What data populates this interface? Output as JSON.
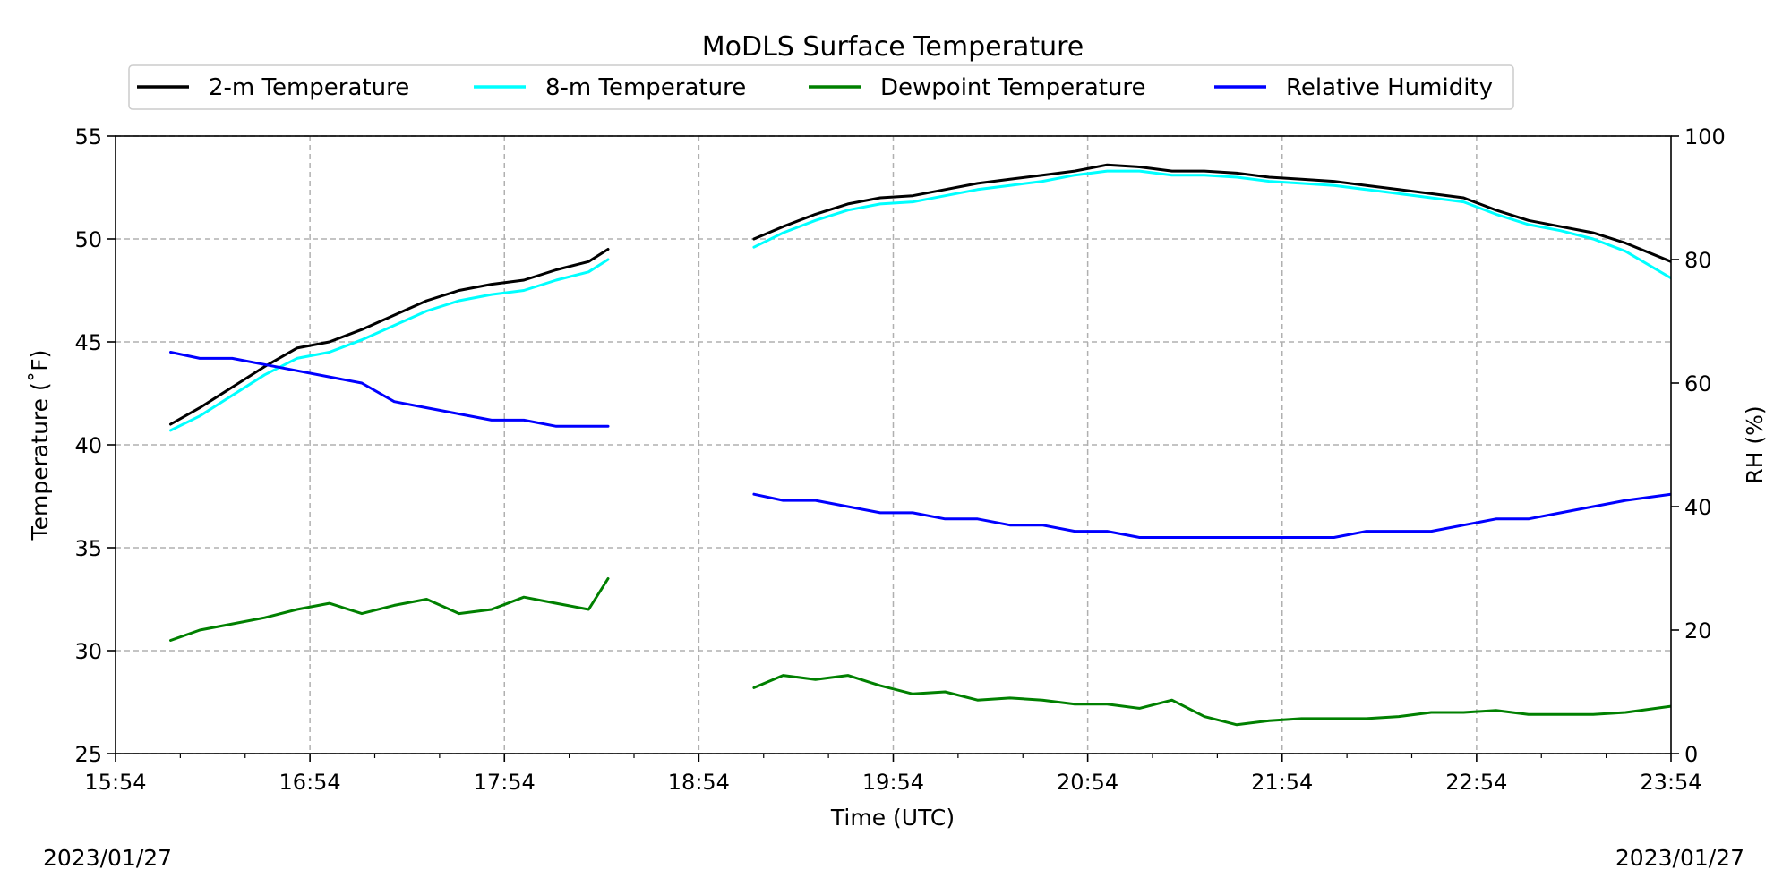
{
  "chart_data": {
    "type": "line",
    "title": "MoDLS Surface Temperature",
    "xlabel": "Time (UTC)",
    "ylabel": "Temperature (˚F)",
    "y2label": "RH (%)",
    "ylim": [
      25,
      55
    ],
    "y2lim": [
      0,
      100
    ],
    "xlim": [
      "15:54",
      "23:54"
    ],
    "x_ticks": [
      "15:54",
      "16:54",
      "17:54",
      "18:54",
      "19:54",
      "20:54",
      "21:54",
      "22:54",
      "23:54"
    ],
    "y_ticks": [
      25,
      30,
      35,
      40,
      45,
      50,
      55
    ],
    "y2_ticks": [
      0,
      20,
      40,
      60,
      80,
      100
    ],
    "grid": true,
    "legend_position": "top",
    "start_date": "2023/01/27",
    "end_date": "2023/01/27",
    "series": [
      {
        "name": "2-m Temperature",
        "color": "#000000",
        "axis": "left",
        "x": [
          "16:11",
          "16:20",
          "16:30",
          "16:40",
          "16:50",
          "17:00",
          "17:10",
          "17:20",
          "17:30",
          "17:40",
          "17:50",
          "18:00",
          "18:10",
          "18:20",
          "18:26",
          null,
          "19:11",
          "19:20",
          "19:30",
          "19:40",
          "19:50",
          "20:00",
          "20:10",
          "20:20",
          "20:30",
          "20:40",
          "20:50",
          "21:00",
          "21:10",
          "21:20",
          "21:30",
          "21:40",
          "21:50",
          "22:00",
          "22:10",
          "22:20",
          "22:30",
          "22:40",
          "22:50",
          "23:00",
          "23:10",
          "23:20",
          "23:30",
          "23:40",
          "23:54"
        ],
        "values": [
          41.0,
          41.8,
          42.8,
          43.8,
          44.7,
          45.0,
          45.6,
          46.3,
          47.0,
          47.5,
          47.8,
          48.0,
          48.5,
          48.9,
          49.5,
          null,
          50.0,
          50.6,
          51.2,
          51.7,
          52.0,
          52.1,
          52.4,
          52.7,
          52.9,
          53.1,
          53.3,
          53.6,
          53.5,
          53.3,
          53.3,
          53.2,
          53.0,
          52.9,
          52.8,
          52.6,
          52.4,
          52.2,
          52.0,
          51.4,
          50.9,
          50.6,
          50.3,
          49.8,
          48.9
        ]
      },
      {
        "name": "8-m Temperature",
        "color": "#00ffff",
        "axis": "left",
        "x": [
          "16:11",
          "16:20",
          "16:30",
          "16:40",
          "16:50",
          "17:00",
          "17:10",
          "17:20",
          "17:30",
          "17:40",
          "17:50",
          "18:00",
          "18:10",
          "18:20",
          "18:26",
          null,
          "19:11",
          "19:20",
          "19:30",
          "19:40",
          "19:50",
          "20:00",
          "20:10",
          "20:20",
          "20:30",
          "20:40",
          "20:50",
          "21:00",
          "21:10",
          "21:20",
          "21:30",
          "21:40",
          "21:50",
          "22:00",
          "22:10",
          "22:20",
          "22:30",
          "22:40",
          "22:50",
          "23:00",
          "23:10",
          "23:20",
          "23:30",
          "23:40",
          "23:54"
        ],
        "values": [
          40.7,
          41.4,
          42.4,
          43.4,
          44.2,
          44.5,
          45.1,
          45.8,
          46.5,
          47.0,
          47.3,
          47.5,
          48.0,
          48.4,
          49.0,
          null,
          49.6,
          50.3,
          50.9,
          51.4,
          51.7,
          51.8,
          52.1,
          52.4,
          52.6,
          52.8,
          53.1,
          53.3,
          53.3,
          53.1,
          53.1,
          53.0,
          52.8,
          52.7,
          52.6,
          52.4,
          52.2,
          52.0,
          51.8,
          51.2,
          50.7,
          50.4,
          50.0,
          49.4,
          48.1
        ]
      },
      {
        "name": "Dewpoint Temperature",
        "color": "#008000",
        "axis": "left",
        "x": [
          "16:11",
          "16:20",
          "16:30",
          "16:40",
          "16:50",
          "17:00",
          "17:10",
          "17:20",
          "17:30",
          "17:40",
          "17:50",
          "18:00",
          "18:10",
          "18:20",
          "18:26",
          null,
          "19:11",
          "19:20",
          "19:30",
          "19:40",
          "19:50",
          "20:00",
          "20:10",
          "20:20",
          "20:30",
          "20:40",
          "20:50",
          "21:00",
          "21:10",
          "21:20",
          "21:30",
          "21:40",
          "21:50",
          "22:00",
          "22:10",
          "22:20",
          "22:30",
          "22:40",
          "22:50",
          "23:00",
          "23:10",
          "23:20",
          "23:30",
          "23:40",
          "23:54"
        ],
        "values": [
          30.5,
          31.0,
          31.3,
          31.6,
          32.0,
          32.3,
          31.8,
          32.2,
          32.5,
          31.8,
          32.0,
          32.6,
          32.3,
          32.0,
          33.5,
          null,
          28.2,
          28.8,
          28.6,
          28.8,
          28.3,
          27.9,
          28.0,
          27.6,
          27.7,
          27.6,
          27.4,
          27.4,
          27.2,
          27.6,
          26.8,
          26.4,
          26.6,
          26.7,
          26.7,
          26.7,
          26.8,
          27.0,
          27.0,
          27.1,
          26.9,
          26.9,
          26.9,
          27.0,
          27.3
        ]
      },
      {
        "name": "Relative Humidity",
        "color": "#0000ff",
        "axis": "right",
        "x": [
          "16:11",
          "16:20",
          "16:30",
          "16:40",
          "16:50",
          "17:00",
          "17:10",
          "17:20",
          "17:30",
          "17:40",
          "17:50",
          "18:00",
          "18:10",
          "18:20",
          "18:26",
          null,
          "19:11",
          "19:20",
          "19:30",
          "19:40",
          "19:50",
          "20:00",
          "20:10",
          "20:20",
          "20:30",
          "20:40",
          "20:50",
          "21:00",
          "21:10",
          "21:20",
          "21:30",
          "21:40",
          "21:50",
          "22:00",
          "22:10",
          "22:20",
          "22:30",
          "22:40",
          "22:50",
          "23:00",
          "23:10",
          "23:20",
          "23:30",
          "23:40",
          "23:54"
        ],
        "values": [
          65,
          64,
          64,
          63,
          62,
          61,
          60,
          57,
          56,
          55,
          54,
          54,
          53,
          53,
          53,
          null,
          42,
          41,
          41,
          40,
          39,
          39,
          38,
          38,
          37,
          37,
          36,
          36,
          35,
          35,
          35,
          35,
          35,
          35,
          35,
          36,
          36,
          36,
          37,
          38,
          38,
          39,
          40,
          41,
          42
        ]
      }
    ]
  }
}
